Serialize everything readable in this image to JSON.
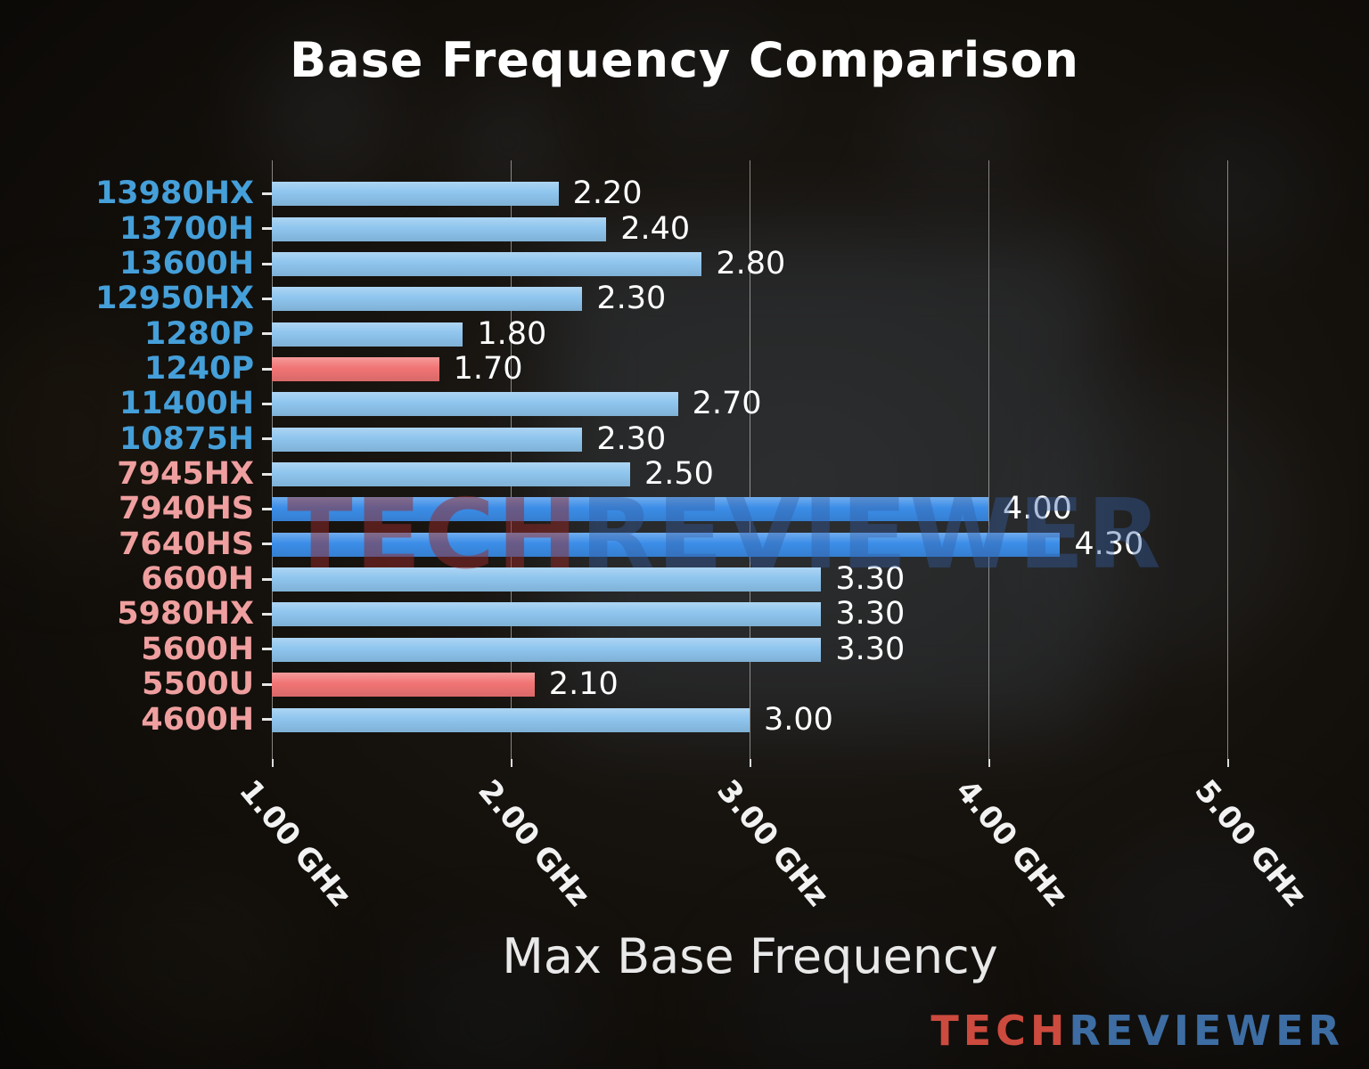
{
  "chart_data": {
    "type": "bar",
    "orientation": "horizontal",
    "title": "Base Frequency Comparison",
    "xlabel": "Max Base Frequency",
    "categories": [
      "13980HX",
      "13700H",
      "13600H",
      "12950HX",
      "1280P",
      "1240P",
      "11400H",
      "10875H",
      "7945HX",
      "7940HS",
      "7640HS",
      "6600H",
      "5980HX",
      "5600H",
      "5500U",
      "4600H"
    ],
    "values": [
      2.2,
      2.4,
      2.8,
      2.3,
      1.8,
      1.7,
      2.7,
      2.3,
      2.5,
      4.0,
      4.3,
      3.3,
      3.3,
      3.3,
      2.1,
      3.0
    ],
    "value_labels": [
      "2.20",
      "2.40",
      "2.80",
      "2.30",
      "1.80",
      "1.70",
      "2.70",
      "2.30",
      "2.50",
      "4.00",
      "4.30",
      "3.30",
      "3.30",
      "3.30",
      "2.10",
      "3.00"
    ],
    "x_ticks": [
      "1.00 GHz",
      "2.00 GHz",
      "3.00 GHz",
      "4.00 GHz",
      "5.00 GHz"
    ],
    "x_tick_values": [
      1,
      2,
      3,
      4,
      5
    ],
    "xlim": [
      1,
      5.5
    ],
    "grid": true,
    "legend": false,
    "bar_color_keys": [
      "light",
      "light",
      "light",
      "light",
      "light",
      "red",
      "light",
      "light",
      "light",
      "bright",
      "bright",
      "light",
      "light",
      "light",
      "red",
      "light"
    ],
    "label_color_keys": [
      "blue",
      "blue",
      "blue",
      "blue",
      "blue",
      "blue",
      "blue",
      "blue",
      "pink",
      "pink",
      "pink",
      "pink",
      "pink",
      "pink",
      "pink",
      "pink"
    ],
    "colors": {
      "light": "#8ec5ee",
      "bright": "#3b8de8",
      "red": "#f17474",
      "blue": "#459fd9",
      "pink": "#ef9f9f"
    }
  },
  "watermark": {
    "tech": "TECH",
    "reviewer": "REVIEWER"
  },
  "logo": {
    "tech": "TECH",
    "reviewer": "REVIEWER"
  }
}
